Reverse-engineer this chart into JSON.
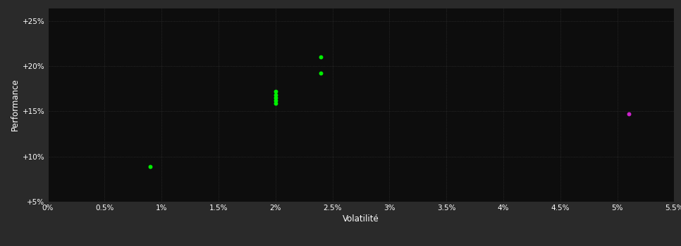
{
  "background_color": "#2a2a2a",
  "plot_bg_color": "#0d0d0d",
  "grid_color": "#3a3a3a",
  "text_color": "#ffffff",
  "xlabel": "Volatilité",
  "ylabel": "Performance",
  "xlim": [
    0.0,
    0.055
  ],
  "ylim": [
    0.05,
    0.265
  ],
  "xticks": [
    0.0,
    0.005,
    0.01,
    0.015,
    0.02,
    0.025,
    0.03,
    0.035,
    0.04,
    0.045,
    0.05,
    0.055
  ],
  "xtick_labels": [
    "0%",
    "0.5%",
    "1%",
    "1.5%",
    "2%",
    "2.5%",
    "3%",
    "3.5%",
    "4%",
    "4.5%",
    "5%",
    "5.5%"
  ],
  "yticks": [
    0.05,
    0.1,
    0.15,
    0.2,
    0.25
  ],
  "ytick_labels": [
    "+5%",
    "+10%",
    "+15%",
    "+20%",
    "+25%"
  ],
  "green_points": [
    [
      0.009,
      0.089
    ],
    [
      0.02,
      0.172
    ],
    [
      0.02,
      0.168
    ],
    [
      0.02,
      0.165
    ],
    [
      0.02,
      0.162
    ],
    [
      0.02,
      0.159
    ],
    [
      0.024,
      0.192
    ],
    [
      0.024,
      0.21
    ]
  ],
  "magenta_points": [
    [
      0.051,
      0.147
    ]
  ],
  "green_color": "#00ee00",
  "magenta_color": "#cc22cc",
  "marker_size": 18
}
